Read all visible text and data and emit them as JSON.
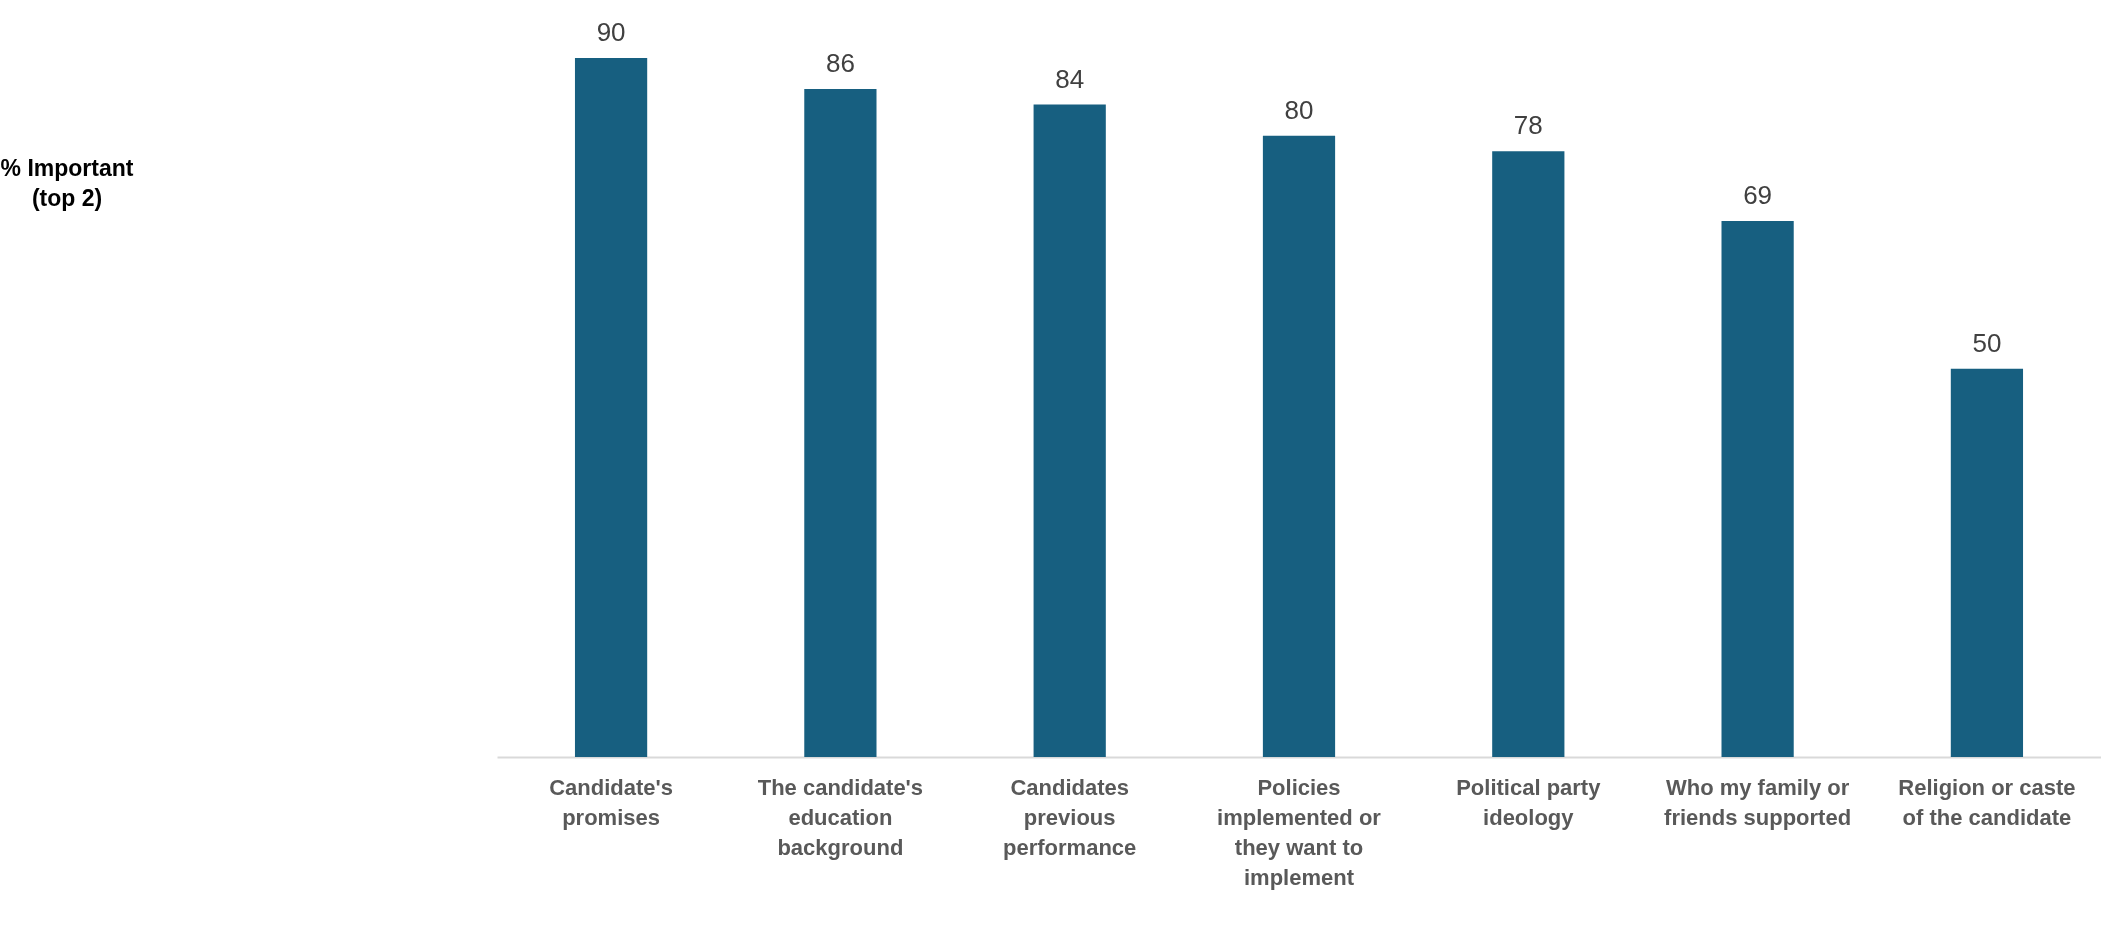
{
  "chart_data": {
    "type": "bar",
    "annotations": [
      "% Important (top 2)"
    ],
    "categories": [
      "Candidate's promises",
      "The candidate's education background",
      "Candidates previous performance",
      "Policies implemented or they want to implement",
      "Political party ideology",
      "Who my family or friends supported",
      "Religion or caste of the candidate"
    ],
    "values": [
      90,
      86,
      84,
      80,
      78,
      69,
      50
    ],
    "color": "#175f80",
    "data_labels": true
  }
}
